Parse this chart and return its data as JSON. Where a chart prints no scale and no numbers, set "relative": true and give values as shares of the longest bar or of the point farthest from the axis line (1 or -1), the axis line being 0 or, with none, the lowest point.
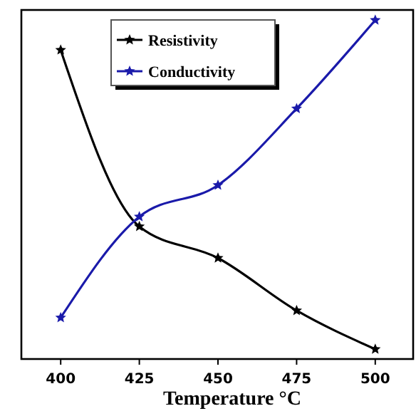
{
  "chart_data": {
    "type": "line",
    "relative": true,
    "xlabel": "Temperature °C",
    "x": [
      400,
      425,
      450,
      475,
      500
    ],
    "xlim": [
      387.5,
      512.5
    ],
    "xticks": [
      400,
      425,
      450,
      475,
      500
    ],
    "legend": "top",
    "marker": "star",
    "grid": false,
    "series": [
      {
        "name": "Resistivity",
        "color": "#000000",
        "values": [
          0.912,
          0.391,
          0.298,
          0.143,
          0.029
        ]
      },
      {
        "name": "Conductivity",
        "color": "#1a1aaa",
        "values": [
          0.122,
          0.42,
          0.513,
          0.739,
          1
        ]
      }
    ]
  }
}
